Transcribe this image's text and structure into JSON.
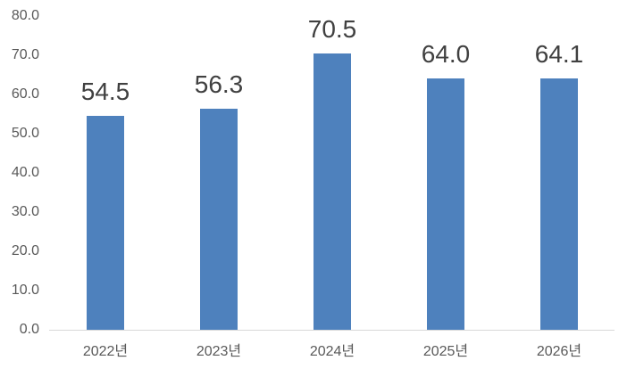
{
  "chart_data": {
    "type": "bar",
    "title": "",
    "categories": [
      "2022년",
      "2023년",
      "2024년",
      "2025년",
      "2026년"
    ],
    "values": [
      54.5,
      56.3,
      70.5,
      64.0,
      64.1
    ],
    "data_labels": [
      "54.5",
      "56.3",
      "70.5",
      "64.0",
      "64.1"
    ],
    "xlabel": "",
    "ylabel": "",
    "ylim": [
      0,
      80
    ],
    "y_tick_step": 10,
    "y_ticks": [
      "0.0",
      "10.0",
      "20.0",
      "30.0",
      "40.0",
      "50.0",
      "60.0",
      "70.0",
      "80.0"
    ],
    "grid": false,
    "legend": false,
    "bar_color": "#4E81BD",
    "axis_line_color": "#D9D9D9",
    "tick_label_color": "#595959",
    "data_label_color": "#404040"
  }
}
